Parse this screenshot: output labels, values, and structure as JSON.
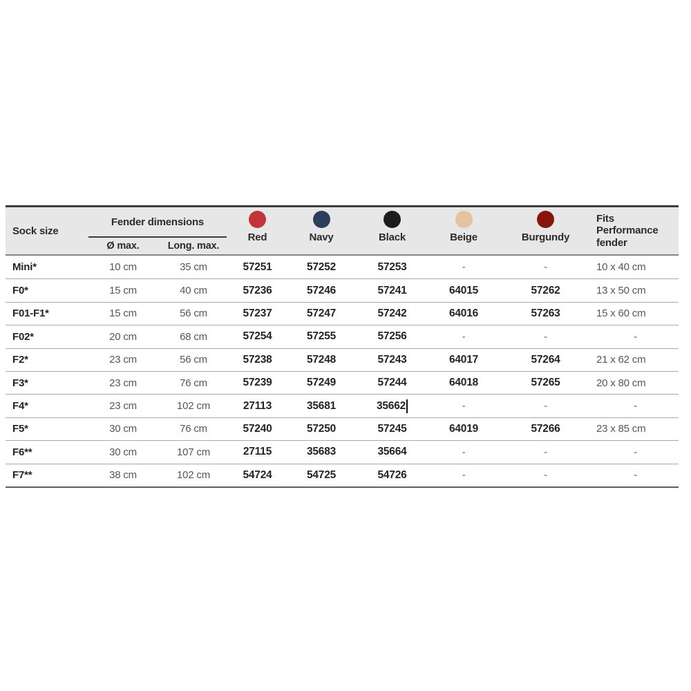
{
  "table": {
    "header": {
      "sock_size": "Sock size",
      "fender_dimensions": "Fender dimensions",
      "diameter_max": "Ø max.",
      "length_max": "Long. max.",
      "colors": [
        {
          "name": "red",
          "label": "Red",
          "hex": "#c2343a"
        },
        {
          "name": "navy",
          "label": "Navy",
          "hex": "#2c3f5a"
        },
        {
          "name": "black",
          "label": "Black",
          "hex": "#1c1c1c"
        },
        {
          "name": "beige",
          "label": "Beige",
          "hex": "#e2c59d"
        },
        {
          "name": "burgundy",
          "label": "Burgundy",
          "hex": "#87150c"
        }
      ],
      "fits": "Fits Performance fender"
    },
    "rows": [
      {
        "size": "Mini*",
        "d_max": "10 cm",
        "long_max": "35 cm",
        "red": "57251",
        "navy": "57252",
        "black": "57253",
        "beige": "-",
        "burgundy": "-",
        "fits": "10 x 40 cm"
      },
      {
        "size": "F0*",
        "d_max": "15 cm",
        "long_max": "40 cm",
        "red": "57236",
        "navy": "57246",
        "black": "57241",
        "beige": "64015",
        "burgundy": "57262",
        "fits": "13 x 50 cm"
      },
      {
        "size": "F01-F1*",
        "d_max": "15 cm",
        "long_max": "56 cm",
        "red": "57237",
        "navy": "57247",
        "black": "57242",
        "beige": "64016",
        "burgundy": "57263",
        "fits": "15 x 60 cm"
      },
      {
        "size": "F02*",
        "d_max": "20 cm",
        "long_max": "68 cm",
        "red": "57254",
        "navy": "57255",
        "black": "57256",
        "beige": "-",
        "burgundy": "-",
        "fits": "-"
      },
      {
        "size": "F2*",
        "d_max": "23 cm",
        "long_max": "56 cm",
        "red": "57238",
        "navy": "57248",
        "black": "57243",
        "beige": "64017",
        "burgundy": "57264",
        "fits": "21 x 62 cm"
      },
      {
        "size": "F3*",
        "d_max": "23 cm",
        "long_max": "76 cm",
        "red": "57239",
        "navy": "57249",
        "black": "57244",
        "beige": "64018",
        "burgundy": "57265",
        "fits": "20 x 80 cm"
      },
      {
        "size": "F4*",
        "d_max": "23 cm",
        "long_max": "102 cm",
        "red": "27113",
        "navy": "35681",
        "black": "35662",
        "black_caret": true,
        "beige": "-",
        "burgundy": "-",
        "fits": "-"
      },
      {
        "size": "F5*",
        "d_max": "30 cm",
        "long_max": "76 cm",
        "red": "57240",
        "navy": "57250",
        "black": "57245",
        "beige": "64019",
        "burgundy": "57266",
        "fits": "23 x 85 cm"
      },
      {
        "size": "F6**",
        "d_max": "30 cm",
        "long_max": "107 cm",
        "red": "27115",
        "navy": "35683",
        "black": "35664",
        "beige": "-",
        "burgundy": "-",
        "fits": "-"
      },
      {
        "size": "F7**",
        "d_max": "38 cm",
        "long_max": "102 cm",
        "red": "54724",
        "navy": "54725",
        "black": "54726",
        "beige": "-",
        "burgundy": "-",
        "fits": "-"
      }
    ]
  }
}
